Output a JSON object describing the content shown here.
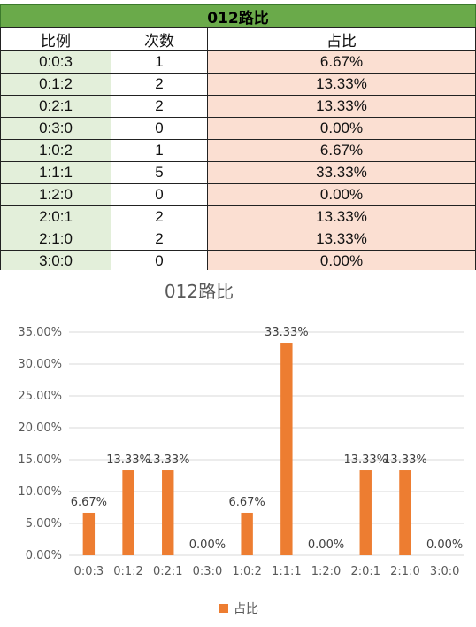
{
  "table": {
    "title": "012路比",
    "headers": [
      "比例",
      "次数",
      "占比"
    ],
    "rows": [
      [
        "0:0:3",
        "1",
        "6.67%"
      ],
      [
        "0:1:2",
        "2",
        "13.33%"
      ],
      [
        "0:2:1",
        "2",
        "13.33%"
      ],
      [
        "0:3:0",
        "0",
        "0.00%"
      ],
      [
        "1:0:2",
        "1",
        "6.67%"
      ],
      [
        "1:1:1",
        "5",
        "33.33%"
      ],
      [
        "1:2:0",
        "0",
        "0.00%"
      ],
      [
        "2:0:1",
        "2",
        "13.33%"
      ],
      [
        "2:1:0",
        "2",
        "13.33%"
      ],
      [
        "3:0:0",
        "0",
        "0.00%"
      ]
    ]
  },
  "chart_data": {
    "type": "bar",
    "title": "012路比",
    "categories": [
      "0:0:3",
      "0:1:2",
      "0:2:1",
      "0:3:0",
      "1:0:2",
      "1:1:1",
      "1:2:0",
      "2:0:1",
      "2:1:0",
      "3:0:0"
    ],
    "series": [
      {
        "name": "占比",
        "values": [
          6.67,
          13.33,
          13.33,
          0.0,
          6.67,
          33.33,
          0.0,
          13.33,
          13.33,
          0.0
        ],
        "labels": [
          "6.67%",
          "13.33%",
          "13.33%",
          "0.00%",
          "6.67%",
          "33.33%",
          "0.00%",
          "13.33%",
          "13.33%",
          "0.00%"
        ]
      }
    ],
    "yticks": [
      "0.00%",
      "5.00%",
      "10.00%",
      "15.00%",
      "20.00%",
      "25.00%",
      "30.00%",
      "35.00%"
    ],
    "ylim": [
      0,
      35
    ],
    "grid": true,
    "legend": "bottom",
    "color": "#ed7d31"
  }
}
